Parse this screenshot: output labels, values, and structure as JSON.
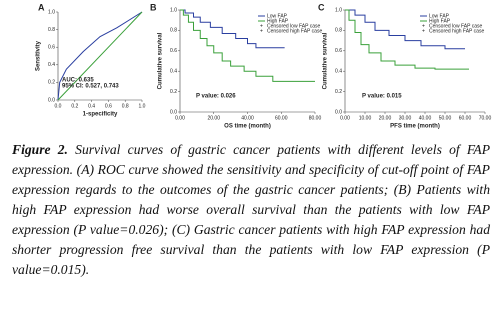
{
  "chart_data": [
    {
      "type": "line",
      "title": "A",
      "xlabel": "1-specificity",
      "ylabel": "Sensitivity",
      "xlim": [
        0,
        1
      ],
      "ylim": [
        0,
        1
      ],
      "xticks": [
        {
          "value": 0,
          "label": "0.0"
        },
        {
          "value": 0.2,
          "label": "0.2"
        },
        {
          "value": 0.4,
          "label": "0.4"
        },
        {
          "value": 0.6,
          "label": "0.6"
        },
        {
          "value": 0.8,
          "label": "0.8"
        },
        {
          "value": 1,
          "label": "1.0"
        }
      ],
      "yticks": [
        {
          "value": 0,
          "label": "0.0"
        },
        {
          "value": 0.2,
          "label": "0.2"
        },
        {
          "value": 0.4,
          "label": "0.4"
        },
        {
          "value": 0.6,
          "label": "0.6"
        },
        {
          "value": 0.8,
          "label": "0.8"
        },
        {
          "value": 1,
          "label": "1.0"
        }
      ],
      "series": [
        {
          "color": "#2a3fa0",
          "x": [
            0,
            0.02,
            0.1,
            0.3,
            0.5,
            0.7,
            1
          ],
          "values": [
            0,
            0.2,
            0.35,
            0.55,
            0.72,
            0.82,
            1
          ]
        },
        {
          "color": "#3aa03a",
          "x": [
            0,
            1
          ],
          "values": [
            0,
            1
          ]
        }
      ],
      "annotations": [
        "AUC: 0.635",
        "95% CI: 0.527, 0.743"
      ]
    },
    {
      "type": "line",
      "title": "B",
      "xlabel": "OS time (month)",
      "ylabel": "Cumulative survival",
      "xlim": [
        0,
        80
      ],
      "ylim": [
        0,
        1
      ],
      "xticks": [
        {
          "value": 0,
          "label": "0.00"
        },
        {
          "value": 20,
          "label": "20.00"
        },
        {
          "value": 40,
          "label": "40.00"
        },
        {
          "value": 60,
          "label": "60.00"
        },
        {
          "value": 80,
          "label": "80.00"
        }
      ],
      "yticks": [
        {
          "value": 0,
          "label": "0.0"
        },
        {
          "value": 0.2,
          "label": "0.2"
        },
        {
          "value": 0.4,
          "label": "0.4"
        },
        {
          "value": 0.6,
          "label": "0.6"
        },
        {
          "value": 0.8,
          "label": "0.8"
        },
        {
          "value": 1,
          "label": "1.0"
        }
      ],
      "series": [
        {
          "name": "Low FAP",
          "color": "#2a3fa0",
          "x": [
            0,
            3,
            3,
            8,
            8,
            12,
            12,
            18,
            18,
            25,
            25,
            33,
            33,
            40,
            40,
            45,
            45,
            62
          ],
          "values": [
            1,
            1,
            0.97,
            0.97,
            0.93,
            0.93,
            0.88,
            0.88,
            0.83,
            0.83,
            0.77,
            0.77,
            0.72,
            0.72,
            0.67,
            0.67,
            0.63,
            0.63
          ]
        },
        {
          "name": "High FAP",
          "color": "#3aa03a",
          "x": [
            0,
            2,
            2,
            5,
            5,
            8,
            8,
            12,
            12,
            16,
            16,
            20,
            20,
            25,
            25,
            30,
            30,
            38,
            38,
            45,
            45,
            55,
            55,
            80
          ],
          "values": [
            1,
            1,
            0.95,
            0.95,
            0.88,
            0.88,
            0.8,
            0.8,
            0.72,
            0.72,
            0.65,
            0.65,
            0.58,
            0.58,
            0.5,
            0.5,
            0.45,
            0.45,
            0.4,
            0.4,
            0.35,
            0.35,
            0.3,
            0.3
          ]
        }
      ],
      "censored_labels": [
        "Censored low FAP case",
        "Censored high FAP case"
      ],
      "annotations": [
        "P value: 0.026"
      ]
    },
    {
      "type": "line",
      "title": "C",
      "xlabel": "PFS time (month)",
      "ylabel": "Cumulative survival",
      "xlim": [
        0,
        70
      ],
      "ylim": [
        0,
        1
      ],
      "xticks": [
        {
          "value": 0,
          "label": "0.00"
        },
        {
          "value": 10,
          "label": "10.00"
        },
        {
          "value": 20,
          "label": "20.00"
        },
        {
          "value": 30,
          "label": "30.00"
        },
        {
          "value": 40,
          "label": "40.00"
        },
        {
          "value": 50,
          "label": "50.00"
        },
        {
          "value": 60,
          "label": "60.00"
        },
        {
          "value": 70,
          "label": "70.00"
        }
      ],
      "yticks": [
        {
          "value": 0,
          "label": "0.0"
        },
        {
          "value": 0.2,
          "label": "0.2"
        },
        {
          "value": 0.4,
          "label": "0.4"
        },
        {
          "value": 0.6,
          "label": "0.6"
        },
        {
          "value": 0.8,
          "label": "0.8"
        },
        {
          "value": 1,
          "label": "1.0"
        }
      ],
      "series": [
        {
          "name": "Low FAP",
          "color": "#2a3fa0",
          "x": [
            0,
            5,
            5,
            10,
            10,
            15,
            15,
            22,
            22,
            30,
            30,
            38,
            38,
            50,
            50,
            60
          ],
          "values": [
            1,
            1,
            0.95,
            0.95,
            0.88,
            0.88,
            0.8,
            0.8,
            0.75,
            0.75,
            0.7,
            0.7,
            0.65,
            0.65,
            0.62,
            0.62
          ]
        },
        {
          "name": "High FAP",
          "color": "#3aa03a",
          "x": [
            0,
            2,
            2,
            5,
            5,
            8,
            8,
            12,
            12,
            18,
            18,
            25,
            25,
            35,
            35,
            45,
            45,
            62
          ],
          "values": [
            1,
            1,
            0.9,
            0.9,
            0.78,
            0.78,
            0.66,
            0.66,
            0.58,
            0.58,
            0.5,
            0.5,
            0.46,
            0.46,
            0.43,
            0.43,
            0.42,
            0.42
          ]
        }
      ],
      "censored_labels": [
        "Censored low FAP case",
        "Censored high FAP case"
      ],
      "annotations": [
        "P value: 0.015"
      ]
    }
  ],
  "caption": {
    "label": "Figure 2.",
    "text": "Survival curves of gastric cancer patients with different levels of FAP expression. (A) ROC curve showed the sensitivity and specificity of cut-off point of FAP expression regards to the outcomes of the gastric cancer patients; (B) Patients with high FAP expression had worse overall survival than the patients with low FAP expression (P value=0.026); (C) Gastric cancer patients with high FAP expression had shorter progression free survival than the patients with low FAP expression (P value=0.015)."
  }
}
